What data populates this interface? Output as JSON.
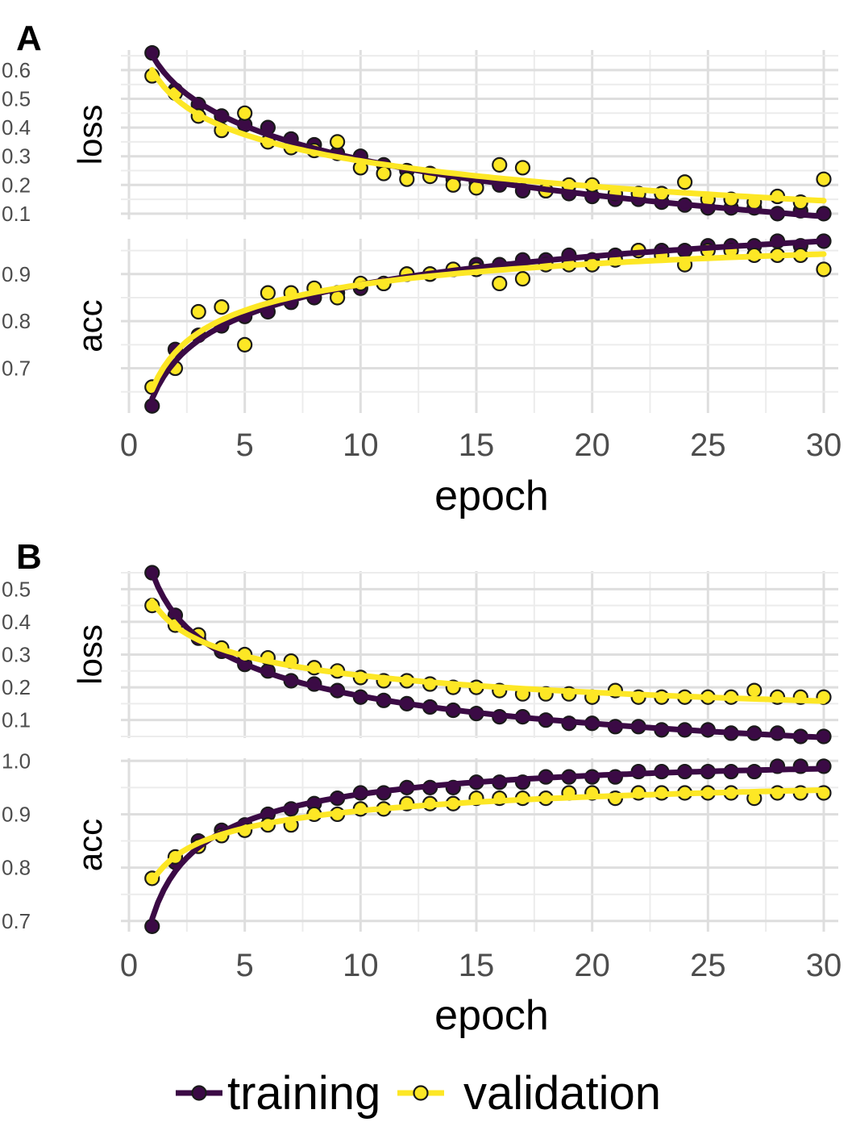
{
  "colors": {
    "training": "#3b0a45",
    "validation": "#fde725",
    "point_outline": "#1a1a1a"
  },
  "legend": {
    "position": "bottom",
    "items": [
      {
        "key": "training",
        "label": "training"
      },
      {
        "key": "validation",
        "label": "validation"
      }
    ]
  },
  "chart_data": [
    {
      "tag": "A",
      "type": "line",
      "xlabel": "epoch",
      "xlim": [
        0,
        30
      ],
      "xticks": [
        0,
        5,
        10,
        15,
        20,
        25,
        30
      ],
      "grid": true,
      "facets": [
        {
          "metric": "loss",
          "ylim": [
            0.08,
            0.67
          ],
          "yticks": [
            0.1,
            0.2,
            0.3,
            0.4,
            0.5,
            0.6
          ],
          "series": [
            {
              "name": "training",
              "x": [
                1,
                2,
                3,
                4,
                5,
                6,
                7,
                8,
                9,
                10,
                11,
                12,
                13,
                14,
                15,
                16,
                17,
                18,
                19,
                20,
                21,
                22,
                23,
                24,
                25,
                26,
                27,
                28,
                29,
                30
              ],
              "values": [
                0.66,
                0.53,
                0.48,
                0.44,
                0.41,
                0.4,
                0.36,
                0.34,
                0.31,
                0.3,
                0.27,
                0.25,
                0.24,
                0.22,
                0.21,
                0.2,
                0.18,
                0.18,
                0.17,
                0.16,
                0.15,
                0.15,
                0.14,
                0.13,
                0.12,
                0.12,
                0.12,
                0.1,
                0.11,
                0.1
              ]
            },
            {
              "name": "validation",
              "x": [
                1,
                2,
                3,
                4,
                5,
                6,
                7,
                8,
                9,
                10,
                11,
                12,
                13,
                14,
                15,
                16,
                17,
                18,
                19,
                20,
                21,
                22,
                23,
                24,
                25,
                26,
                27,
                28,
                29,
                30
              ],
              "values": [
                0.58,
                0.52,
                0.44,
                0.39,
                0.45,
                0.35,
                0.33,
                0.32,
                0.35,
                0.26,
                0.24,
                0.22,
                0.23,
                0.2,
                0.19,
                0.27,
                0.26,
                0.18,
                0.2,
                0.2,
                0.17,
                0.17,
                0.17,
                0.21,
                0.15,
                0.15,
                0.14,
                0.16,
                0.14,
                0.22
              ]
            }
          ]
        },
        {
          "metric": "acc",
          "ylim": [
            0.605,
            0.975
          ],
          "yticks": [
            0.7,
            0.8,
            0.9
          ],
          "series": [
            {
              "name": "training",
              "x": [
                1,
                2,
                3,
                4,
                5,
                6,
                7,
                8,
                9,
                10,
                11,
                12,
                13,
                14,
                15,
                16,
                17,
                18,
                19,
                20,
                21,
                22,
                23,
                24,
                25,
                26,
                27,
                28,
                29,
                30
              ],
              "values": [
                0.62,
                0.74,
                0.77,
                0.79,
                0.81,
                0.82,
                0.84,
                0.85,
                0.86,
                0.87,
                0.88,
                0.9,
                0.9,
                0.91,
                0.92,
                0.92,
                0.93,
                0.93,
                0.94,
                0.93,
                0.94,
                0.95,
                0.95,
                0.95,
                0.96,
                0.96,
                0.96,
                0.97,
                0.96,
                0.97
              ]
            },
            {
              "name": "validation",
              "x": [
                1,
                2,
                3,
                4,
                5,
                6,
                7,
                8,
                9,
                10,
                11,
                12,
                13,
                14,
                15,
                16,
                17,
                18,
                19,
                20,
                21,
                22,
                23,
                24,
                25,
                26,
                27,
                28,
                29,
                30
              ],
              "values": [
                0.66,
                0.7,
                0.82,
                0.83,
                0.75,
                0.86,
                0.86,
                0.87,
                0.85,
                0.88,
                0.88,
                0.9,
                0.9,
                0.91,
                0.91,
                0.88,
                0.89,
                0.92,
                0.92,
                0.92,
                0.93,
                0.95,
                0.94,
                0.92,
                0.95,
                0.95,
                0.94,
                0.94,
                0.94,
                0.91
              ]
            }
          ]
        }
      ]
    },
    {
      "tag": "B",
      "type": "line",
      "xlabel": "epoch",
      "xlim": [
        0,
        30
      ],
      "xticks": [
        0,
        5,
        10,
        15,
        20,
        25,
        30
      ],
      "grid": true,
      "facets": [
        {
          "metric": "loss",
          "ylim": [
            0.045,
            0.555
          ],
          "yticks": [
            0.1,
            0.2,
            0.3,
            0.4,
            0.5
          ],
          "series": [
            {
              "name": "training",
              "x": [
                1,
                2,
                3,
                4,
                5,
                6,
                7,
                8,
                9,
                10,
                11,
                12,
                13,
                14,
                15,
                16,
                17,
                18,
                19,
                20,
                21,
                22,
                23,
                24,
                25,
                26,
                27,
                28,
                29,
                30
              ],
              "values": [
                0.55,
                0.42,
                0.35,
                0.31,
                0.27,
                0.25,
                0.22,
                0.21,
                0.19,
                0.17,
                0.16,
                0.15,
                0.14,
                0.13,
                0.12,
                0.11,
                0.11,
                0.1,
                0.09,
                0.09,
                0.08,
                0.08,
                0.07,
                0.07,
                0.07,
                0.06,
                0.06,
                0.06,
                0.05,
                0.05
              ]
            },
            {
              "name": "validation",
              "x": [
                1,
                2,
                3,
                4,
                5,
                6,
                7,
                8,
                9,
                10,
                11,
                12,
                13,
                14,
                15,
                16,
                17,
                18,
                19,
                20,
                21,
                22,
                23,
                24,
                25,
                26,
                27,
                28,
                29,
                30
              ],
              "values": [
                0.45,
                0.39,
                0.36,
                0.32,
                0.3,
                0.29,
                0.28,
                0.26,
                0.25,
                0.23,
                0.22,
                0.22,
                0.21,
                0.2,
                0.2,
                0.19,
                0.18,
                0.18,
                0.18,
                0.17,
                0.19,
                0.17,
                0.17,
                0.17,
                0.17,
                0.17,
                0.19,
                0.17,
                0.17,
                0.17
              ]
            }
          ]
        },
        {
          "metric": "acc",
          "ylim": [
            0.68,
            1.005
          ],
          "yticks": [
            0.7,
            0.8,
            0.9,
            1.0
          ],
          "series": [
            {
              "name": "training",
              "x": [
                1,
                2,
                3,
                4,
                5,
                6,
                7,
                8,
                9,
                10,
                11,
                12,
                13,
                14,
                15,
                16,
                17,
                18,
                19,
                20,
                21,
                22,
                23,
                24,
                25,
                26,
                27,
                28,
                29,
                30
              ],
              "values": [
                0.69,
                0.81,
                0.85,
                0.87,
                0.88,
                0.9,
                0.91,
                0.92,
                0.93,
                0.94,
                0.94,
                0.95,
                0.95,
                0.95,
                0.96,
                0.96,
                0.96,
                0.97,
                0.97,
                0.97,
                0.97,
                0.98,
                0.98,
                0.98,
                0.98,
                0.98,
                0.98,
                0.99,
                0.99,
                0.99
              ]
            },
            {
              "name": "validation",
              "x": [
                1,
                2,
                3,
                4,
                5,
                6,
                7,
                8,
                9,
                10,
                11,
                12,
                13,
                14,
                15,
                16,
                17,
                18,
                19,
                20,
                21,
                22,
                23,
                24,
                25,
                26,
                27,
                28,
                29,
                30
              ],
              "values": [
                0.78,
                0.82,
                0.84,
                0.86,
                0.87,
                0.88,
                0.88,
                0.9,
                0.9,
                0.91,
                0.91,
                0.92,
                0.92,
                0.92,
                0.93,
                0.93,
                0.93,
                0.93,
                0.94,
                0.94,
                0.93,
                0.94,
                0.94,
                0.94,
                0.94,
                0.94,
                0.93,
                0.94,
                0.94,
                0.94
              ]
            }
          ]
        }
      ]
    }
  ]
}
